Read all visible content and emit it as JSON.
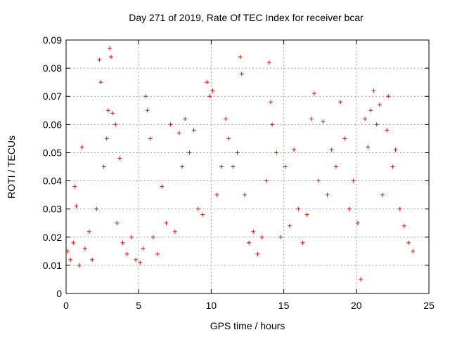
{
  "chart_data": {
    "type": "scatter",
    "title": "Day 271 of 2019, Rate Of TEC Index for receiver bcar",
    "xlabel": "GPS time / hours",
    "ylabel": "ROTI / TECUs",
    "xlim": [
      0,
      25
    ],
    "ylim": [
      0,
      0.09
    ],
    "x_ticks": [
      "0",
      "5",
      "10",
      "15",
      "20",
      "25"
    ],
    "y_ticks": [
      "0",
      "0.01",
      "0.02",
      "0.03",
      "0.04",
      "0.05",
      "0.06",
      "0.07",
      "0.08",
      "0.09"
    ],
    "grid": true,
    "marker": "+",
    "series": [
      {
        "color": "#ff0000",
        "points": [
          [
            0.1,
            0.015
          ],
          [
            0.3,
            0.012
          ],
          [
            0.5,
            0.018
          ],
          [
            0.6,
            0.038
          ],
          [
            0.7,
            0.031
          ],
          [
            0.9,
            0.01
          ],
          [
            1.1,
            0.052
          ],
          [
            1.3,
            0.016
          ],
          [
            1.6,
            0.022
          ],
          [
            1.8,
            0.012
          ],
          [
            2.1,
            0.03
          ],
          [
            2.3,
            0.083
          ],
          [
            2.4,
            0.075
          ],
          [
            2.6,
            0.045
          ],
          [
            2.8,
            0.055
          ],
          [
            2.9,
            0.065
          ],
          [
            3.0,
            0.087
          ],
          [
            3.1,
            0.084
          ],
          [
            3.2,
            0.064
          ],
          [
            3.4,
            0.06
          ],
          [
            3.5,
            0.025
          ],
          [
            3.7,
            0.048
          ],
          [
            3.9,
            0.018
          ],
          [
            4.2,
            0.014
          ],
          [
            4.5,
            0.02
          ],
          [
            4.8,
            0.012
          ],
          [
            5.1,
            0.011
          ],
          [
            5.3,
            0.016
          ],
          [
            5.5,
            0.07
          ],
          [
            5.6,
            0.065
          ],
          [
            5.8,
            0.055
          ],
          [
            6.0,
            0.02
          ],
          [
            6.3,
            0.014
          ],
          [
            6.6,
            0.038
          ],
          [
            6.9,
            0.025
          ],
          [
            7.2,
            0.06
          ],
          [
            7.5,
            0.022
          ],
          [
            7.8,
            0.057
          ],
          [
            8.0,
            0.045
          ],
          [
            8.2,
            0.062
          ],
          [
            8.5,
            0.05
          ],
          [
            8.8,
            0.058
          ],
          [
            9.1,
            0.03
          ],
          [
            9.4,
            0.028
          ],
          [
            9.7,
            0.075
          ],
          [
            9.9,
            0.07
          ],
          [
            10.1,
            0.072
          ],
          [
            10.4,
            0.035
          ],
          [
            10.7,
            0.045
          ],
          [
            11.0,
            0.062
          ],
          [
            11.2,
            0.055
          ],
          [
            11.5,
            0.045
          ],
          [
            11.8,
            0.05
          ],
          [
            12.0,
            0.084
          ],
          [
            12.1,
            0.078
          ],
          [
            12.3,
            0.035
          ],
          [
            12.6,
            0.018
          ],
          [
            12.9,
            0.022
          ],
          [
            13.2,
            0.014
          ],
          [
            13.5,
            0.02
          ],
          [
            13.8,
            0.04
          ],
          [
            14.0,
            0.082
          ],
          [
            14.1,
            0.068
          ],
          [
            14.2,
            0.06
          ],
          [
            14.5,
            0.05
          ],
          [
            14.8,
            0.02
          ],
          [
            15.1,
            0.045
          ],
          [
            15.4,
            0.024
          ],
          [
            15.7,
            0.051
          ],
          [
            16.0,
            0.03
          ],
          [
            16.3,
            0.018
          ],
          [
            16.6,
            0.028
          ],
          [
            16.9,
            0.062
          ],
          [
            17.1,
            0.071
          ],
          [
            17.4,
            0.04
          ],
          [
            17.7,
            0.061
          ],
          [
            18.0,
            0.035
          ],
          [
            18.3,
            0.051
          ],
          [
            18.6,
            0.045
          ],
          [
            18.9,
            0.068
          ],
          [
            19.2,
            0.055
          ],
          [
            19.5,
            0.03
          ],
          [
            19.8,
            0.04
          ],
          [
            20.1,
            0.025
          ],
          [
            20.3,
            0.005
          ],
          [
            20.6,
            0.062
          ],
          [
            20.8,
            0.052
          ],
          [
            21.0,
            0.065
          ],
          [
            21.2,
            0.072
          ],
          [
            21.4,
            0.06
          ],
          [
            21.6,
            0.067
          ],
          [
            21.8,
            0.035
          ],
          [
            22.1,
            0.058
          ],
          [
            22.2,
            0.07
          ],
          [
            22.5,
            0.045
          ],
          [
            22.7,
            0.051
          ],
          [
            23.0,
            0.03
          ],
          [
            23.3,
            0.024
          ],
          [
            23.6,
            0.018
          ],
          [
            23.9,
            0.015
          ]
        ]
      }
    ]
  }
}
